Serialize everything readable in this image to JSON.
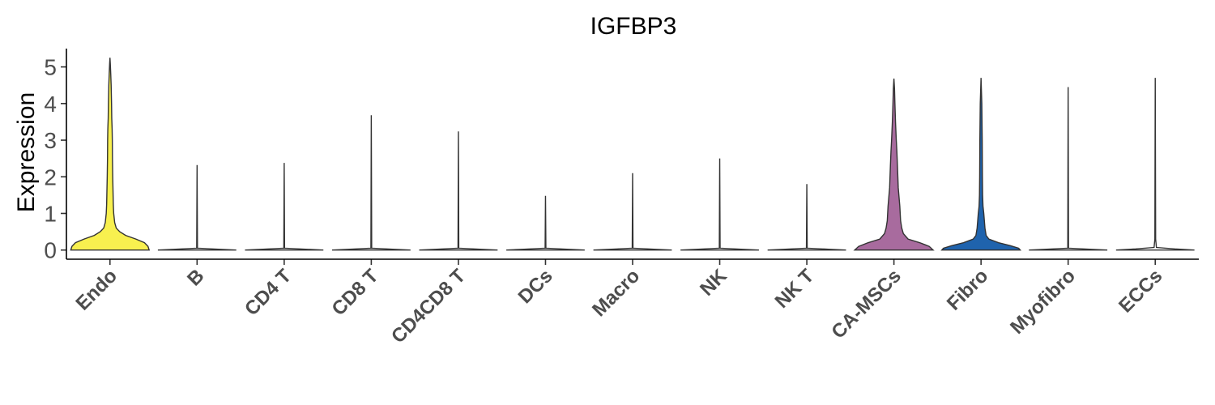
{
  "chart_data": {
    "type": "violin",
    "title": "IGFBP3",
    "xlabel": "",
    "ylabel": "Expression",
    "ylim": [
      -0.25,
      5.5
    ],
    "yticks": [
      "0",
      "1",
      "2",
      "3",
      "4",
      "5"
    ],
    "categories": [
      "Endo",
      "B",
      "CD4 T",
      "CD8 T",
      "CD4CD8 T",
      "DCs",
      "Macro",
      "NK",
      "NK T",
      "CA-MSCs",
      "Fibro",
      "Myofibro",
      "ECCs"
    ],
    "max_values": [
      5.25,
      2.32,
      2.38,
      3.68,
      3.24,
      1.48,
      2.1,
      2.5,
      1.8,
      4.68,
      4.7,
      4.45,
      4.7
    ],
    "colors": [
      "#f8f04f",
      "#ffffff",
      "#ffffff",
      "#ffffff",
      "#ffffff",
      "#ffffff",
      "#ffffff",
      "#ffffff",
      "#ffffff",
      "#a86b9e",
      "#1f63ad",
      "#ffffff",
      "#ffffff"
    ],
    "profiles": [
      [
        [
          0,
          1.0
        ],
        [
          0.1,
          0.97
        ],
        [
          0.2,
          0.88
        ],
        [
          0.3,
          0.66
        ],
        [
          0.4,
          0.4
        ],
        [
          0.5,
          0.25
        ],
        [
          0.6,
          0.16
        ],
        [
          0.75,
          0.12
        ],
        [
          1.0,
          0.095
        ],
        [
          1.25,
          0.085
        ],
        [
          1.5,
          0.08
        ],
        [
          2.0,
          0.07
        ],
        [
          2.5,
          0.063
        ],
        [
          3.0,
          0.06
        ],
        [
          3.3,
          0.055
        ],
        [
          3.6,
          0.045
        ],
        [
          4.0,
          0.04
        ],
        [
          4.5,
          0.03
        ],
        [
          4.8,
          0.02
        ],
        [
          5.1,
          0.008
        ],
        [
          5.25,
          0.0
        ]
      ],
      [
        [
          0,
          1.0
        ],
        [
          0.02,
          0.6
        ],
        [
          0.05,
          0.01
        ],
        [
          2.32,
          0.0
        ]
      ],
      [
        [
          0,
          1.0
        ],
        [
          0.02,
          0.6
        ],
        [
          0.05,
          0.01
        ],
        [
          2.38,
          0.0
        ]
      ],
      [
        [
          0,
          1.0
        ],
        [
          0.02,
          0.6
        ],
        [
          0.05,
          0.01
        ],
        [
          3.68,
          0.0
        ]
      ],
      [
        [
          0,
          1.0
        ],
        [
          0.02,
          0.6
        ],
        [
          0.05,
          0.01
        ],
        [
          3.24,
          0.0
        ]
      ],
      [
        [
          0,
          1.0
        ],
        [
          0.02,
          0.6
        ],
        [
          0.05,
          0.01
        ],
        [
          1.48,
          0.0
        ]
      ],
      [
        [
          0,
          1.0
        ],
        [
          0.02,
          0.6
        ],
        [
          0.05,
          0.01
        ],
        [
          2.1,
          0.0
        ]
      ],
      [
        [
          0,
          1.0
        ],
        [
          0.02,
          0.6
        ],
        [
          0.05,
          0.01
        ],
        [
          2.5,
          0.0
        ]
      ],
      [
        [
          0,
          1.0
        ],
        [
          0.02,
          0.6
        ],
        [
          0.05,
          0.01
        ],
        [
          1.8,
          0.0
        ]
      ],
      [
        [
          0,
          1.0
        ],
        [
          0.1,
          0.9
        ],
        [
          0.2,
          0.66
        ],
        [
          0.3,
          0.36
        ],
        [
          0.45,
          0.24
        ],
        [
          0.6,
          0.2
        ],
        [
          0.8,
          0.17
        ],
        [
          1.0,
          0.16
        ],
        [
          1.2,
          0.15
        ],
        [
          1.45,
          0.13
        ],
        [
          1.7,
          0.11
        ],
        [
          2.0,
          0.1
        ],
        [
          2.3,
          0.09
        ],
        [
          2.7,
          0.075
        ],
        [
          3.0,
          0.06
        ],
        [
          3.5,
          0.04
        ],
        [
          4.0,
          0.025
        ],
        [
          4.4,
          0.015
        ],
        [
          4.68,
          0.0
        ]
      ],
      [
        [
          0,
          1.0
        ],
        [
          0.05,
          0.96
        ],
        [
          0.12,
          0.75
        ],
        [
          0.2,
          0.45
        ],
        [
          0.3,
          0.2
        ],
        [
          0.4,
          0.13
        ],
        [
          0.6,
          0.1
        ],
        [
          0.8,
          0.085
        ],
        [
          1.0,
          0.07
        ],
        [
          1.2,
          0.05
        ],
        [
          1.5,
          0.04
        ],
        [
          2.0,
          0.035
        ],
        [
          3.0,
          0.03
        ],
        [
          4.0,
          0.02
        ],
        [
          4.7,
          0.0
        ]
      ],
      [
        [
          0,
          1.0
        ],
        [
          0.02,
          0.6
        ],
        [
          0.05,
          0.01
        ],
        [
          4.45,
          0.0
        ]
      ],
      [
        [
          0,
          1.0
        ],
        [
          0.03,
          0.5
        ],
        [
          0.07,
          0.03
        ],
        [
          0.3,
          0.01
        ],
        [
          4.7,
          0.0
        ]
      ]
    ]
  }
}
